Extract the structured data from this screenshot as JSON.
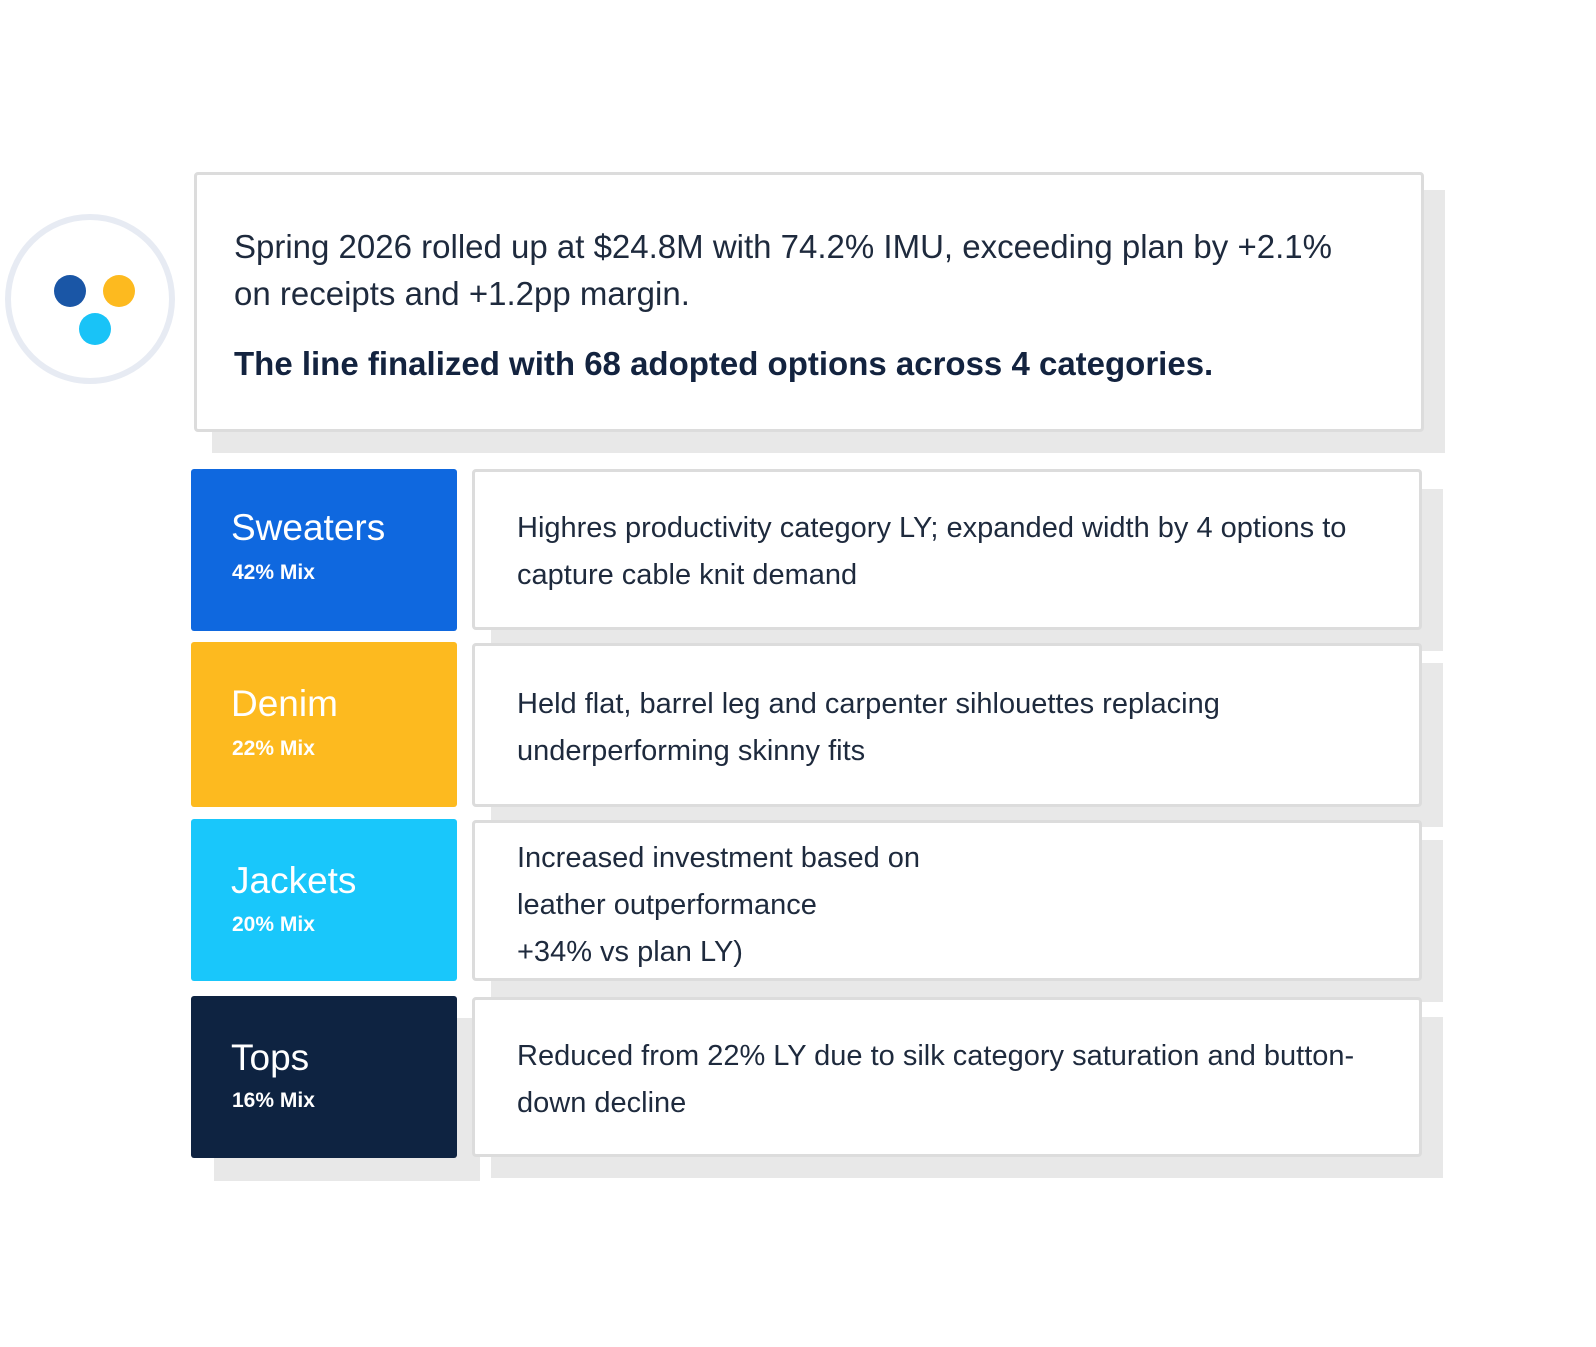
{
  "logo": {
    "icon": "three-dots-logo-icon",
    "colors": [
      "#1a56a6",
      "#fdba1f",
      "#19c3f7"
    ]
  },
  "summary": {
    "text": "Spring 2026 rolled up at $24.8M with 74.2% IMU, exceeding plan by +2.1% on receipts and +1.2pp margin.",
    "bold_text": "The line finalized with 68 adopted options across 4 categories."
  },
  "categories": [
    {
      "name": "Sweaters",
      "mix": "42% Mix",
      "color": "#0f68df",
      "description": "Highres productivity category LY; expanded width by 4 options to capture cable knit demand"
    },
    {
      "name": "Denim",
      "mix": "22% Mix",
      "color": "#fdba1f",
      "description": "Held flat, barrel leg and carpenter sihlouettes replacing underperforming skinny fits"
    },
    {
      "name": "Jackets",
      "mix": "20% Mix",
      "color": "#19c7fb",
      "description_lines": [
        "Increased investment based on",
        "leather outperformance",
        "+34% vs plan LY)"
      ]
    },
    {
      "name": "Tops",
      "mix": "16% Mix",
      "color": "#0e2341",
      "description": "Reduced from 22% LY due to silk category saturation and button-down decline"
    }
  ]
}
